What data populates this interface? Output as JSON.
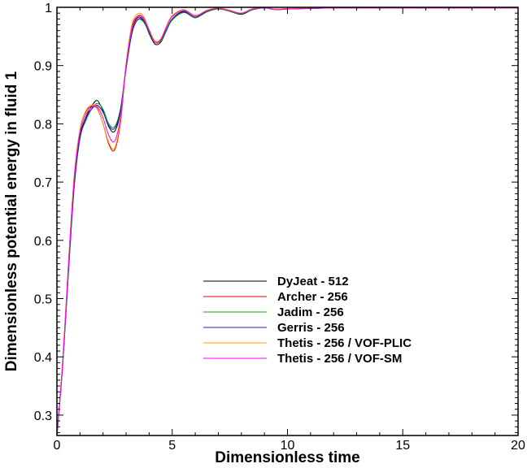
{
  "chart_data": {
    "type": "line",
    "title": "",
    "xlabel": "Dimensionless time",
    "ylabel": "Dimensionless potential energy in fluid 1",
    "xlim": [
      0,
      20
    ],
    "ylim": [
      0.265,
      1.0
    ],
    "xticks": [
      0,
      5,
      10,
      15,
      20
    ],
    "yticks": [
      0.3,
      0.4,
      0.5,
      0.6,
      0.7,
      0.8,
      0.9,
      1
    ],
    "xtick_labels": [
      "0",
      "5",
      "10",
      "15",
      "20"
    ],
    "ytick_labels": [
      "0.3",
      "0.4",
      "0.5",
      "0.6",
      "0.7",
      "0.8",
      "0.9",
      "1"
    ],
    "grid": false,
    "legend_position": "lower-middle",
    "series": [
      {
        "name": "DyJeat - 512",
        "color": "#000000",
        "x": [
          0,
          0.25,
          0.5,
          0.75,
          1.0,
          1.25,
          1.5,
          1.75,
          2.0,
          2.25,
          2.5,
          2.75,
          3.0,
          3.25,
          3.5,
          3.75,
          4.0,
          4.25,
          4.5,
          4.75,
          5.0,
          5.5,
          6.0,
          6.5,
          7.0,
          7.5,
          8.0,
          8.5,
          9.0,
          9.5,
          10.0,
          11.0,
          12.0,
          13.0,
          14.0,
          15.0,
          16.0,
          17.0,
          18.0,
          19.0,
          20.0
        ],
        "y": [
          0.265,
          0.39,
          0.55,
          0.7,
          0.78,
          0.81,
          0.83,
          0.84,
          0.822,
          0.795,
          0.787,
          0.82,
          0.9,
          0.96,
          0.982,
          0.978,
          0.955,
          0.937,
          0.94,
          0.96,
          0.98,
          0.993,
          0.982,
          0.993,
          0.998,
          0.993,
          0.988,
          0.996,
          0.999,
          0.996,
          0.997,
          0.998,
          0.999,
          0.999,
          0.999,
          0.999,
          0.999,
          0.999,
          0.999,
          0.999,
          0.999
        ]
      },
      {
        "name": "Archer - 256",
        "color": "#e00000",
        "x": [
          0,
          0.25,
          0.5,
          0.75,
          1.0,
          1.25,
          1.5,
          1.75,
          2.0,
          2.25,
          2.5,
          2.75,
          3.0,
          3.25,
          3.5,
          3.75,
          4.0,
          4.25,
          4.5,
          4.75,
          5.0,
          5.5,
          6.0,
          6.5,
          7.0,
          7.5,
          8.0,
          8.5,
          9.0,
          9.5,
          10.0,
          11.0,
          12.0,
          13.0,
          14.0,
          15.0,
          16.0,
          17.0,
          18.0,
          19.0,
          20.0
        ],
        "y": [
          0.265,
          0.39,
          0.56,
          0.71,
          0.79,
          0.82,
          0.83,
          0.826,
          0.8,
          0.765,
          0.755,
          0.8,
          0.9,
          0.965,
          0.985,
          0.982,
          0.96,
          0.94,
          0.945,
          0.967,
          0.985,
          0.995,
          0.985,
          0.995,
          0.999,
          0.995,
          0.99,
          0.998,
          1.0,
          0.997,
          0.998,
          0.999,
          0.999,
          0.999,
          0.999,
          0.999,
          0.999,
          0.999,
          0.999,
          0.999,
          0.999
        ]
      },
      {
        "name": "Jadim - 256",
        "color": "#00b000",
        "x": [
          0,
          0.25,
          0.5,
          0.75,
          1.0,
          1.25,
          1.5,
          1.75,
          2.0,
          2.25,
          2.5,
          2.75,
          3.0,
          3.25,
          3.5,
          3.75,
          4.0,
          4.25,
          4.5,
          4.75,
          5.0,
          5.5,
          6.0,
          6.5,
          7.0,
          7.5,
          8.0,
          8.5,
          9.0,
          9.5,
          10.0,
          11.0,
          12.0,
          13.0,
          14.0,
          15.0,
          16.0,
          17.0,
          18.0,
          19.0,
          20.0
        ],
        "y": [
          0.265,
          0.385,
          0.545,
          0.69,
          0.775,
          0.805,
          0.825,
          0.835,
          0.825,
          0.8,
          0.795,
          0.825,
          0.895,
          0.955,
          0.978,
          0.975,
          0.957,
          0.94,
          0.942,
          0.96,
          0.978,
          0.991,
          0.982,
          0.992,
          0.997,
          0.993,
          0.989,
          0.996,
          0.999,
          0.996,
          0.997,
          0.998,
          0.999,
          0.999,
          0.999,
          0.999,
          0.999,
          0.999,
          0.999,
          0.999,
          0.999
        ]
      },
      {
        "name": "Gerris - 256",
        "color": "#2020c0",
        "x": [
          0,
          0.25,
          0.5,
          0.75,
          1.0,
          1.25,
          1.5,
          1.75,
          2.0,
          2.25,
          2.5,
          2.75,
          3.0,
          3.25,
          3.5,
          3.75,
          4.0,
          4.25,
          4.5,
          4.75,
          5.0,
          5.5,
          6.0,
          6.5,
          7.0,
          7.5,
          8.0,
          8.5,
          9.0,
          9.5,
          10.0,
          11.0,
          12.0,
          13.0,
          14.0,
          15.0,
          16.0,
          17.0,
          18.0,
          19.0,
          20.0
        ],
        "y": [
          0.265,
          0.385,
          0.545,
          0.695,
          0.775,
          0.808,
          0.825,
          0.832,
          0.82,
          0.797,
          0.792,
          0.822,
          0.895,
          0.955,
          0.979,
          0.977,
          0.958,
          0.942,
          0.944,
          0.962,
          0.98,
          0.992,
          0.983,
          0.993,
          0.998,
          0.994,
          0.99,
          0.997,
          0.999,
          0.996,
          0.997,
          0.998,
          0.999,
          0.999,
          0.999,
          0.999,
          0.999,
          0.999,
          0.999,
          0.999,
          0.999
        ]
      },
      {
        "name": "Thetis - 256 / VOF-PLIC",
        "color": "#ff9900",
        "x": [
          0,
          0.25,
          0.5,
          0.75,
          1.0,
          1.25,
          1.5,
          1.75,
          2.0,
          2.25,
          2.5,
          2.75,
          3.0,
          3.25,
          3.5,
          3.75,
          4.0,
          4.25,
          4.5,
          4.75,
          5.0,
          5.5,
          6.0,
          6.5,
          7.0,
          7.5,
          8.0,
          8.5,
          9.0,
          9.5,
          10.0,
          11.0,
          12.0,
          13.0,
          14.0,
          15.0,
          16.0,
          17.0,
          18.0,
          19.0,
          20.0
        ],
        "y": [
          0.265,
          0.392,
          0.56,
          0.71,
          0.79,
          0.822,
          0.832,
          0.828,
          0.8,
          0.768,
          0.758,
          0.805,
          0.905,
          0.97,
          0.989,
          0.985,
          0.962,
          0.942,
          0.946,
          0.968,
          0.986,
          0.996,
          0.986,
          0.995,
          0.999,
          0.995,
          0.99,
          0.998,
          1.0,
          0.997,
          0.998,
          0.999,
          0.999,
          0.999,
          0.999,
          0.999,
          0.999,
          0.999,
          0.999,
          0.999,
          0.999
        ]
      },
      {
        "name": "Thetis - 256 / VOF-SM",
        "color": "#ff00ff",
        "x": [
          0,
          0.25,
          0.5,
          0.75,
          1.0,
          1.25,
          1.5,
          1.75,
          2.0,
          2.25,
          2.5,
          2.75,
          3.0,
          3.25,
          3.5,
          3.75,
          4.0,
          4.25,
          4.5,
          4.75,
          5.0,
          5.5,
          6.0,
          6.5,
          7.0,
          7.5,
          8.0,
          8.5,
          9.0,
          9.5,
          10.0,
          11.0,
          12.0,
          13.0,
          14.0,
          15.0,
          16.0,
          17.0,
          18.0,
          19.0,
          20.0
        ],
        "y": [
          0.265,
          0.39,
          0.555,
          0.705,
          0.785,
          0.815,
          0.828,
          0.83,
          0.81,
          0.78,
          0.77,
          0.81,
          0.9,
          0.962,
          0.984,
          0.981,
          0.96,
          0.94,
          0.944,
          0.966,
          0.984,
          0.995,
          0.985,
          0.994,
          0.998,
          0.994,
          0.99,
          0.997,
          0.999,
          0.996,
          0.997,
          0.998,
          0.999,
          0.999,
          0.999,
          0.999,
          0.999,
          0.999,
          0.999,
          0.999,
          0.999
        ]
      }
    ]
  }
}
